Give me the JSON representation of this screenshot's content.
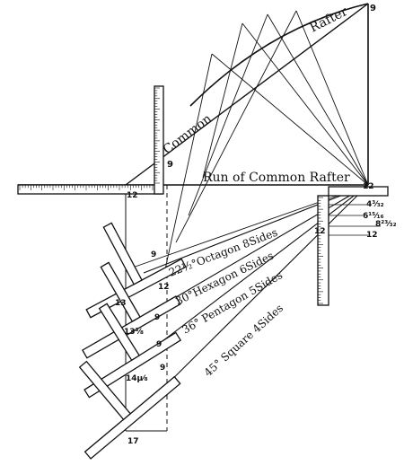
{
  "labels": {
    "common": "Common",
    "rafter": "Rafter",
    "run": "Run of Common Rafter",
    "octagon": "22½°Octagon 8Sides",
    "hexagon": "30°Hexagon 6Sides",
    "pentagon": "36° Pentagon 5Sides",
    "square": "45° Square 4Sides"
  },
  "numbers": {
    "top_9": "9",
    "pitch_9": "9",
    "left_12": "12",
    "right_12": "12",
    "side_12_a": "12",
    "side_12_b": "12",
    "frac_a": "4³⁄₃₂",
    "frac_b": "6¹⁵⁄₁₆",
    "frac_c": "8²³⁄₃₂",
    "sq_oct_12": "12",
    "sq_oct_9": "9",
    "sq_hex_9": "9",
    "sq_hex_13": "13",
    "sq_pent_9": "9",
    "sq_pent_13": "13³⁄₈",
    "sq_sq_9": "9",
    "sq_sq_14": "14µ⁄₈",
    "sq_sq_17": "17"
  }
}
